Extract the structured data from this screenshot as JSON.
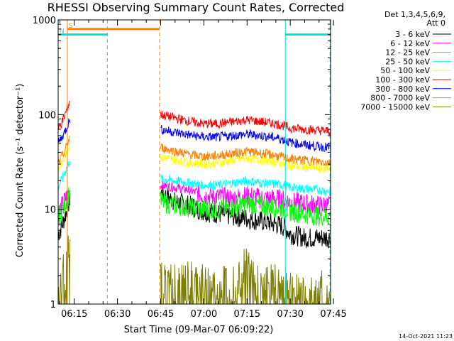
{
  "chart_data": {
    "type": "line",
    "title": "RHESSI Observing Summary Count Rates, Corrected",
    "xlabel": "Start Time (09-Mar-07 06:09:22)",
    "ylabel": "Corrected Count Rate (s⁻¹ detector⁻¹)",
    "timestamp": "14-Oct-2021 11:23",
    "x_unit": "minutes after 06:00 UT",
    "xlim": [
      9.4,
      104.0
    ],
    "ylim": [
      1,
      1000
    ],
    "yscale": "log",
    "x_ticks": [
      {
        "value": 15,
        "label": "06:15"
      },
      {
        "value": 30,
        "label": "06:30"
      },
      {
        "value": 45,
        "label": "06:45"
      },
      {
        "value": 60,
        "label": "07:00"
      },
      {
        "value": 75,
        "label": "07:15"
      },
      {
        "value": 90,
        "label": "07:30"
      },
      {
        "value": 105,
        "label": "07:45"
      }
    ],
    "y_ticks": [
      {
        "value": 1,
        "label": "1"
      },
      {
        "value": 10,
        "label": "10"
      },
      {
        "value": 100,
        "label": "100"
      },
      {
        "value": 1000,
        "label": "1000"
      }
    ],
    "legend": {
      "position": "top-right",
      "header": [
        "Det 1,3,4,5,6,9,",
        "Att 0"
      ]
    },
    "markers": [
      {
        "label": "S",
        "color": "#ff8000",
        "x_start": 12.5,
        "x_end": 44.5,
        "y": 800
      },
      {
        "label": "N",
        "color": "#00e0e0",
        "x_start": 9.4,
        "x_end": 26.5,
        "y": 700
      },
      {
        "label": "",
        "color": "#00e0e0",
        "x_start": 88.3,
        "x_end": 104.0,
        "y": 700
      }
    ],
    "vlines": [
      {
        "x": 12.6,
        "color": "#ff8000",
        "style": "solid"
      },
      {
        "x": 26.5,
        "color": "#00e0e0",
        "style": "dashed"
      },
      {
        "x": 44.6,
        "color": "#ff8000",
        "style": "dashed"
      },
      {
        "x": 88.3,
        "color": "#00e0e0",
        "style": "solid"
      },
      {
        "x": 103.8,
        "color": "#00e0e0",
        "style": "dashed"
      }
    ],
    "series": [
      {
        "name": "3 - 6 keV",
        "color": "#000000",
        "segments": [
          [
            [
              9.4,
              5.5
            ],
            [
              10.5,
              6.5
            ],
            [
              11.5,
              8
            ],
            [
              12.5,
              10
            ],
            [
              13.5,
              13
            ]
          ],
          [
            [
              45,
              15
            ],
            [
              50,
              12
            ],
            [
              55,
              11
            ],
            [
              60,
              9.5
            ],
            [
              65,
              9
            ],
            [
              70,
              8.5
            ],
            [
              75,
              8
            ],
            [
              80,
              7.5
            ],
            [
              85,
              7
            ],
            [
              88,
              6.5
            ],
            [
              90,
              5.5
            ],
            [
              95,
              5
            ],
            [
              100,
              5
            ],
            [
              104,
              5
            ]
          ]
        ]
      },
      {
        "name": "6 - 12 keV",
        "color": "#ff00ff",
        "segments": [
          [
            [
              9.4,
              9
            ],
            [
              10.5,
              10.5
            ],
            [
              11.5,
              12
            ],
            [
              12.5,
              14
            ],
            [
              13.5,
              16
            ]
          ],
          [
            [
              45,
              18
            ],
            [
              50,
              17
            ],
            [
              55,
              16
            ],
            [
              60,
              14
            ],
            [
              65,
              13.5
            ],
            [
              70,
              13
            ],
            [
              75,
              14
            ],
            [
              80,
              13
            ],
            [
              85,
              13
            ],
            [
              88,
              12.5
            ],
            [
              90,
              12
            ],
            [
              95,
              11.5
            ],
            [
              100,
              11
            ],
            [
              104,
              11
            ]
          ]
        ]
      },
      {
        "name": "12 - 25 keV",
        "color": "#00ff00",
        "segments": [
          [
            [
              9.4,
              8
            ],
            [
              10.5,
              9.5
            ],
            [
              11.5,
              11
            ],
            [
              12.5,
              13
            ],
            [
              13.5,
              15
            ]
          ],
          [
            [
              45,
              12
            ],
            [
              50,
              11
            ],
            [
              55,
              10.5
            ],
            [
              60,
              10
            ],
            [
              65,
              10
            ],
            [
              70,
              10.5
            ],
            [
              75,
              11.5
            ],
            [
              80,
              11
            ],
            [
              85,
              10.5
            ],
            [
              88,
              10
            ],
            [
              90,
              9.5
            ],
            [
              95,
              9
            ],
            [
              100,
              8.5
            ],
            [
              104,
              8.5
            ]
          ]
        ]
      },
      {
        "name": "25 - 50 keV",
        "color": "#00ffff",
        "segments": [
          [
            [
              9.4,
              17
            ],
            [
              10.5,
              20
            ],
            [
              11.5,
              24
            ],
            [
              12.5,
              28
            ],
            [
              13.5,
              33
            ]
          ],
          [
            [
              45,
              21
            ],
            [
              50,
              20
            ],
            [
              55,
              19
            ],
            [
              60,
              18
            ],
            [
              65,
              18
            ],
            [
              70,
              19
            ],
            [
              75,
              20
            ],
            [
              80,
              19
            ],
            [
              85,
              18.5
            ],
            [
              88,
              18
            ],
            [
              90,
              17
            ],
            [
              95,
              16.5
            ],
            [
              100,
              16
            ],
            [
              104,
              15.5
            ]
          ]
        ]
      },
      {
        "name": "50 - 100 keV",
        "color": "#ffff00",
        "segments": [
          [
            [
              9.4,
              26
            ],
            [
              10.5,
              30
            ],
            [
              11.5,
              35
            ],
            [
              12.5,
              42
            ],
            [
              13.5,
              50
            ]
          ],
          [
            [
              45,
              36
            ],
            [
              50,
              33
            ],
            [
              55,
              31
            ],
            [
              60,
              30
            ],
            [
              65,
              31
            ],
            [
              70,
              33
            ],
            [
              75,
              35
            ],
            [
              80,
              33
            ],
            [
              85,
              32
            ],
            [
              88,
              30
            ],
            [
              90,
              29
            ],
            [
              95,
              28
            ],
            [
              100,
              27
            ],
            [
              104,
              27
            ]
          ]
        ]
      },
      {
        "name": "100 - 300 keV",
        "color": "#ff0000",
        "segments": [
          [
            [
              9.4,
              70
            ],
            [
              10.5,
              80
            ],
            [
              11.5,
              95
            ],
            [
              12.5,
              115
            ],
            [
              13.5,
              140
            ]
          ],
          [
            [
              45,
              100
            ],
            [
              50,
              92
            ],
            [
              55,
              85
            ],
            [
              60,
              80
            ],
            [
              65,
              80
            ],
            [
              70,
              84
            ],
            [
              75,
              88
            ],
            [
              80,
              84
            ],
            [
              85,
              80
            ],
            [
              88,
              76
            ],
            [
              90,
              72
            ],
            [
              95,
              70
            ],
            [
              100,
              68
            ],
            [
              104,
              67
            ]
          ]
        ]
      },
      {
        "name": "300 - 800 keV",
        "color": "#0000ff",
        "segments": [
          [
            [
              9.4,
              50
            ],
            [
              10.5,
              56
            ],
            [
              11.5,
              64
            ],
            [
              12.5,
              75
            ],
            [
              13.5,
              90
            ]
          ],
          [
            [
              45,
              70
            ],
            [
              50,
              65
            ],
            [
              55,
              61
            ],
            [
              60,
              58
            ],
            [
              65,
              58
            ],
            [
              70,
              60
            ],
            [
              75,
              62
            ],
            [
              80,
              60
            ],
            [
              85,
              57
            ],
            [
              88,
              54
            ],
            [
              90,
              51
            ],
            [
              95,
              48
            ],
            [
              100,
              46
            ],
            [
              104,
              45
            ]
          ]
        ]
      },
      {
        "name": "800 - 7000 keV",
        "color": "#ff8000",
        "segments": [
          [
            [
              9.4,
              30
            ],
            [
              10.5,
              35
            ],
            [
              11.5,
              40
            ],
            [
              12.5,
              48
            ],
            [
              13.5,
              58
            ]
          ],
          [
            [
              45,
              45
            ],
            [
              50,
              41
            ],
            [
              55,
              38
            ],
            [
              60,
              36
            ],
            [
              65,
              37
            ],
            [
              70,
              39
            ],
            [
              75,
              41
            ],
            [
              80,
              39
            ],
            [
              85,
              37
            ],
            [
              88,
              35
            ],
            [
              90,
              34
            ],
            [
              95,
              33
            ],
            [
              100,
              32
            ],
            [
              104,
              31
            ]
          ]
        ]
      },
      {
        "name": "7000 - 15000 keV",
        "color": "#808000",
        "segments": [
          [
            [
              9.4,
              1.6
            ],
            [
              10.5,
              1.7
            ],
            [
              11.5,
              2
            ],
            [
              12.5,
              2.5
            ],
            [
              13.5,
              4
            ]
          ],
          [
            [
              45,
              1.6
            ],
            [
              50,
              1.5
            ],
            [
              55,
              1.6
            ],
            [
              60,
              1.5
            ],
            [
              65,
              1.6
            ],
            [
              70,
              1.7
            ],
            [
              75,
              2.5
            ],
            [
              78,
              1.8
            ],
            [
              80,
              1.6
            ],
            [
              85,
              1.5
            ],
            [
              88,
              1.6
            ],
            [
              90,
              1.4
            ],
            [
              95,
              1.3
            ],
            [
              100,
              1.3
            ],
            [
              104,
              1.2
            ]
          ]
        ]
      }
    ]
  }
}
